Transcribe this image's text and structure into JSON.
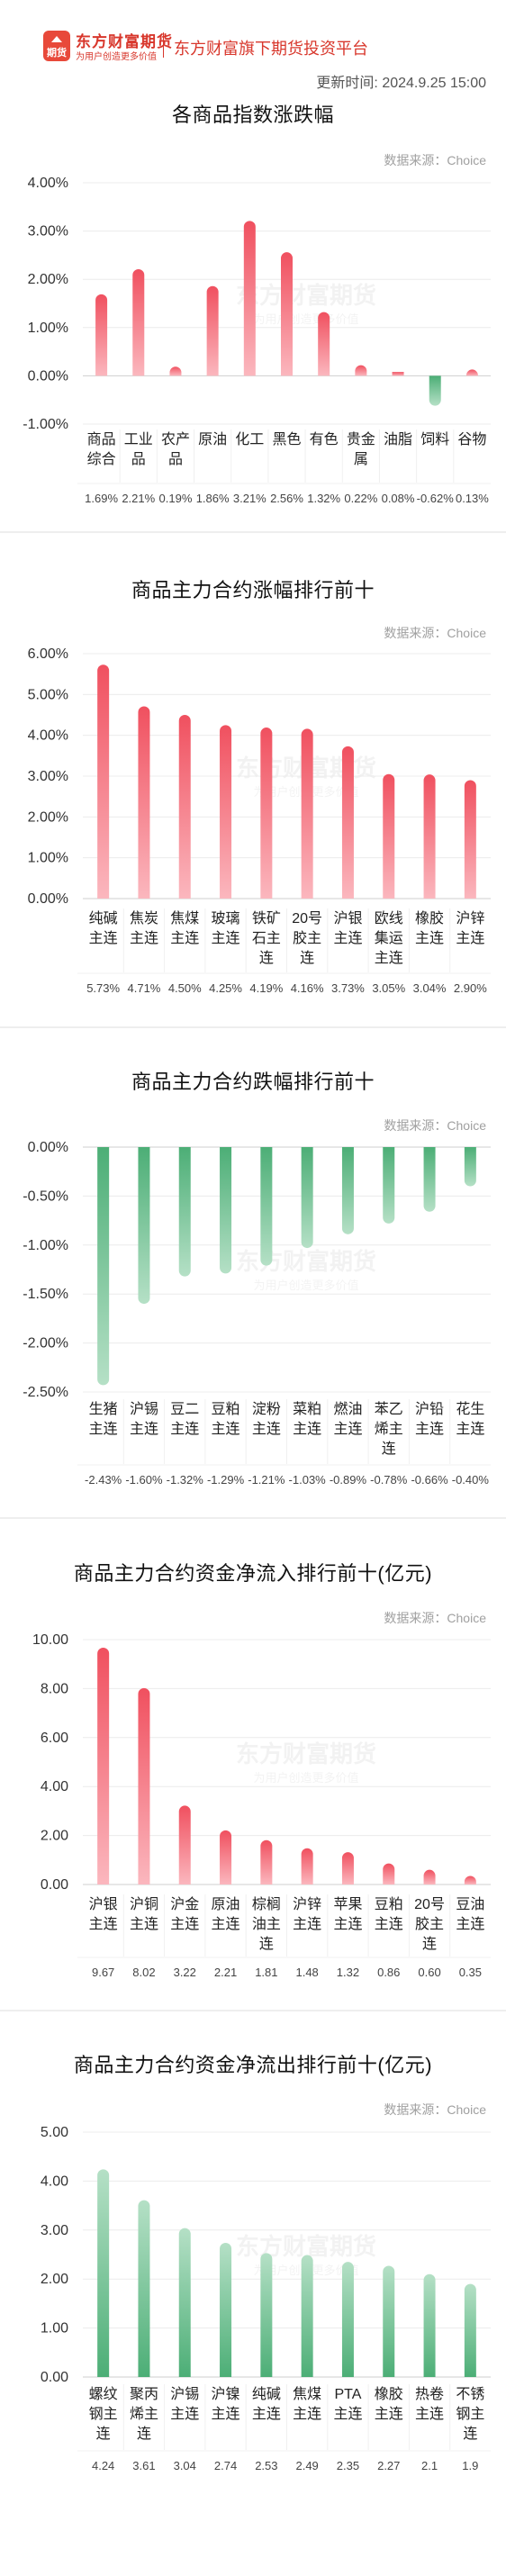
{
  "header": {
    "logo_badge": "期货",
    "logo_name": "东方财富期货",
    "logo_slogan": "为用户创造更多价值",
    "platform": "东方财富旗下期货投资平台",
    "update_label": "更新时间:",
    "update_time": "2024.9.25 15:00"
  },
  "source_text": "数据来源：Choice",
  "watermark": {
    "name": "东方财富期货",
    "slogan": "为用户创造更多价值"
  },
  "colors": {
    "rise": "#f0505f",
    "fall": "#4cae76",
    "brand": "#d8372c"
  },
  "chart_data": [
    {
      "type": "bar",
      "title": "各商品指数涨跌幅",
      "categories": [
        "商品综合",
        "工业品",
        "农产品",
        "原油",
        "化工",
        "黑色",
        "有色",
        "贵金属",
        "油脂",
        "饲料",
        "谷物"
      ],
      "values": [
        1.69,
        2.21,
        0.19,
        1.86,
        3.21,
        2.56,
        1.32,
        0.22,
        0.08,
        -0.62,
        0.13
      ],
      "value_labels": [
        "1.69%",
        "2.21%",
        "0.19%",
        "1.86%",
        "3.21%",
        "2.56%",
        "1.32%",
        "0.22%",
        "0.08%",
        "-0.62%",
        "0.13%"
      ],
      "ylim": [
        -1,
        4
      ],
      "yticks": [
        4,
        3,
        2,
        1,
        0,
        -1
      ],
      "ytick_labels": [
        "4.00%",
        "3.00%",
        "2.00%",
        "1.00%",
        "0.00%",
        "-1.00%"
      ],
      "grid": true
    },
    {
      "type": "bar",
      "title": "商品主力合约涨幅排行前十",
      "categories": [
        "纯碱主连",
        "焦炭主连",
        "焦煤主连",
        "玻璃主连",
        "铁矿石主连",
        "20号胶主连",
        "沪银主连",
        "欧线集运主连",
        "橡胶主连",
        "沪锌主连"
      ],
      "values": [
        5.73,
        4.71,
        4.5,
        4.25,
        4.19,
        4.16,
        3.73,
        3.05,
        3.04,
        2.9
      ],
      "value_labels": [
        "5.73%",
        "4.71%",
        "4.50%",
        "4.25%",
        "4.19%",
        "4.16%",
        "3.73%",
        "3.05%",
        "3.04%",
        "2.90%"
      ],
      "ylim": [
        0,
        6
      ],
      "yticks": [
        6,
        5,
        4,
        3,
        2,
        1,
        0
      ],
      "ytick_labels": [
        "6.00%",
        "5.00%",
        "4.00%",
        "3.00%",
        "2.00%",
        "1.00%",
        "0.00%"
      ],
      "grid": true
    },
    {
      "type": "bar",
      "title": "商品主力合约跌幅排行前十",
      "categories": [
        "生猪主连",
        "沪锡主连",
        "豆二主连",
        "豆粕主连",
        "淀粉主连",
        "菜粕主连",
        "燃油主连",
        "苯乙烯主连",
        "沪铅主连",
        "花生主连"
      ],
      "values": [
        -2.43,
        -1.6,
        -1.32,
        -1.29,
        -1.21,
        -1.03,
        -0.89,
        -0.78,
        -0.66,
        -0.4
      ],
      "value_labels": [
        "-2.43%",
        "-1.60%",
        "-1.32%",
        "-1.29%",
        "-1.21%",
        "-1.03%",
        "-0.89%",
        "-0.78%",
        "-0.66%",
        "-0.40%"
      ],
      "ylim": [
        -2.5,
        0
      ],
      "yticks": [
        0,
        -0.5,
        -1,
        -1.5,
        -2,
        -2.5
      ],
      "ytick_labels": [
        "0.00%",
        "-0.50%",
        "-1.00%",
        "-1.50%",
        "-2.00%",
        "-2.50%"
      ],
      "grid": true
    },
    {
      "type": "bar",
      "title": "商品主力合约资金净流入排行前十(亿元)",
      "categories": [
        "沪银主连",
        "沪铜主连",
        "沪金主连",
        "原油主连",
        "棕榈油主连",
        "沪锌主连",
        "苹果主连",
        "豆粕主连",
        "20号胶主连",
        "豆油主连"
      ],
      "values": [
        9.67,
        8.02,
        3.22,
        2.21,
        1.81,
        1.48,
        1.32,
        0.86,
        0.6,
        0.35
      ],
      "value_labels": [
        "9.67",
        "8.02",
        "3.22",
        "2.21",
        "1.81",
        "1.48",
        "1.32",
        "0.86",
        "0.60",
        "0.35"
      ],
      "ylim": [
        0,
        10
      ],
      "yticks": [
        10,
        8,
        6,
        4,
        2,
        0
      ],
      "ytick_labels": [
        "10.00",
        "8.00",
        "6.00",
        "4.00",
        "2.00",
        "0.00"
      ],
      "grid": true
    },
    {
      "type": "bar",
      "title": "商品主力合约资金净流出排行前十(亿元)",
      "categories": [
        "螺纹钢主连",
        "聚丙烯主连",
        "沪锡主连",
        "沪镍主连",
        "纯碱主连",
        "焦煤主连",
        "PTA主连",
        "橡胶主连",
        "热卷主连",
        "不锈钢主连"
      ],
      "values": [
        4.24,
        3.61,
        3.04,
        2.74,
        2.53,
        2.49,
        2.35,
        2.27,
        2.1,
        1.9
      ],
      "value_labels": [
        "4.24",
        "3.61",
        "3.04",
        "2.74",
        "2.53",
        "2.49",
        "2.35",
        "2.27",
        "2.1",
        "1.9"
      ],
      "ylim": [
        0,
        5
      ],
      "yticks": [
        5,
        4,
        3,
        2,
        1,
        0
      ],
      "ytick_labels": [
        "5.00",
        "4.00",
        "3.00",
        "2.00",
        "1.00",
        "0.00"
      ],
      "grid": true
    }
  ]
}
